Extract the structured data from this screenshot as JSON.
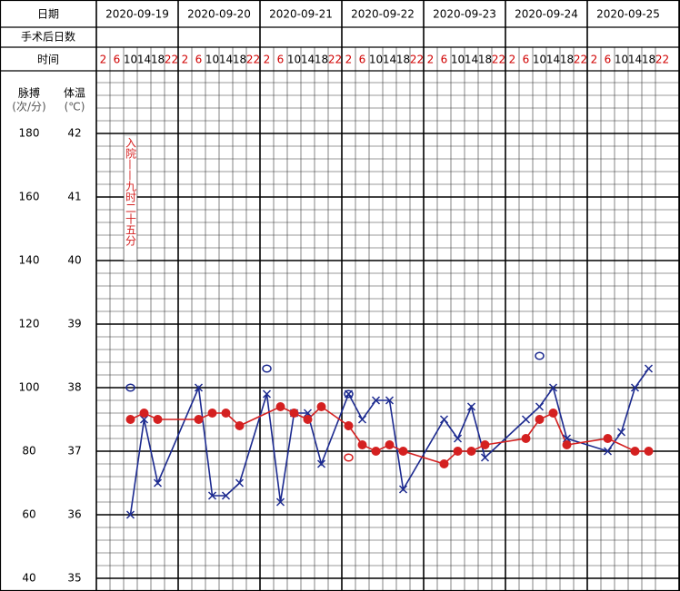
{
  "chart_data": {
    "type": "temperature_chart",
    "row_labels": {
      "date": "日期",
      "postop_days": "手术后日数",
      "time": "时间"
    },
    "dates": [
      "2020-09-19",
      "2020-09-20",
      "2020-09-21",
      "2020-09-22",
      "2020-09-23",
      "2020-09-24",
      "2020-09-25"
    ],
    "times": [
      2,
      6,
      10,
      14,
      18,
      22
    ],
    "time_colors": [
      "#d00000",
      "#d00000",
      "#000000",
      "#000000",
      "#000000",
      "#d00000"
    ],
    "pulse_axis": {
      "label": "脉搏",
      "unit": "(次/分)",
      "lim": [
        40,
        200
      ],
      "ticks": [
        180,
        160,
        140,
        120,
        100,
        80,
        60,
        40
      ]
    },
    "temp_axis": {
      "label": "体温",
      "unit": "(℃)",
      "lim": [
        35,
        43
      ],
      "ticks": [
        42,
        41,
        40,
        39,
        38,
        37,
        36,
        35
      ]
    },
    "temperature": {
      "color": "#d42020",
      "x": [
        2,
        3,
        4,
        7,
        8,
        9,
        10,
        13,
        14,
        15,
        16,
        18,
        19,
        20,
        21,
        22,
        25,
        26,
        27,
        28,
        31,
        32,
        33,
        34,
        37,
        39,
        40
      ],
      "values": [
        37.5,
        37.6,
        37.5,
        37.5,
        37.6,
        37.6,
        37.4,
        37.7,
        37.6,
        37.5,
        37.7,
        37.4,
        37.1,
        37.0,
        37.1,
        37.0,
        36.8,
        37.0,
        37.0,
        37.1,
        37.2,
        37.5,
        37.6,
        37.1,
        37.2,
        37.0,
        37.0
      ]
    },
    "pulse": {
      "color": "#1c2a8f",
      "x": [
        2,
        3,
        4,
        7,
        8,
        9,
        10,
        12,
        13,
        14,
        15,
        16,
        18,
        19,
        20,
        21,
        22,
        25,
        26,
        27,
        28,
        31,
        32,
        33,
        34,
        37,
        38,
        39,
        40
      ],
      "values": [
        60,
        90,
        70,
        100,
        66,
        66,
        70,
        98,
        64,
        92,
        92,
        76,
        98,
        90,
        96,
        96,
        68,
        90,
        84,
        94,
        78,
        90,
        94,
        100,
        84,
        80,
        86,
        100,
        106
      ]
    },
    "pulse_circles": {
      "color": "#1c2a8f",
      "x": [
        2,
        12,
        18,
        32
      ],
      "values": [
        100,
        106,
        98,
        110
      ]
    },
    "temp_circles": {
      "color": "#d42020",
      "x": [
        18
      ],
      "values": [
        36.9
      ]
    },
    "annotation": {
      "text": "入院——九时二十五分",
      "x": 2,
      "color": "#d42020"
    }
  }
}
